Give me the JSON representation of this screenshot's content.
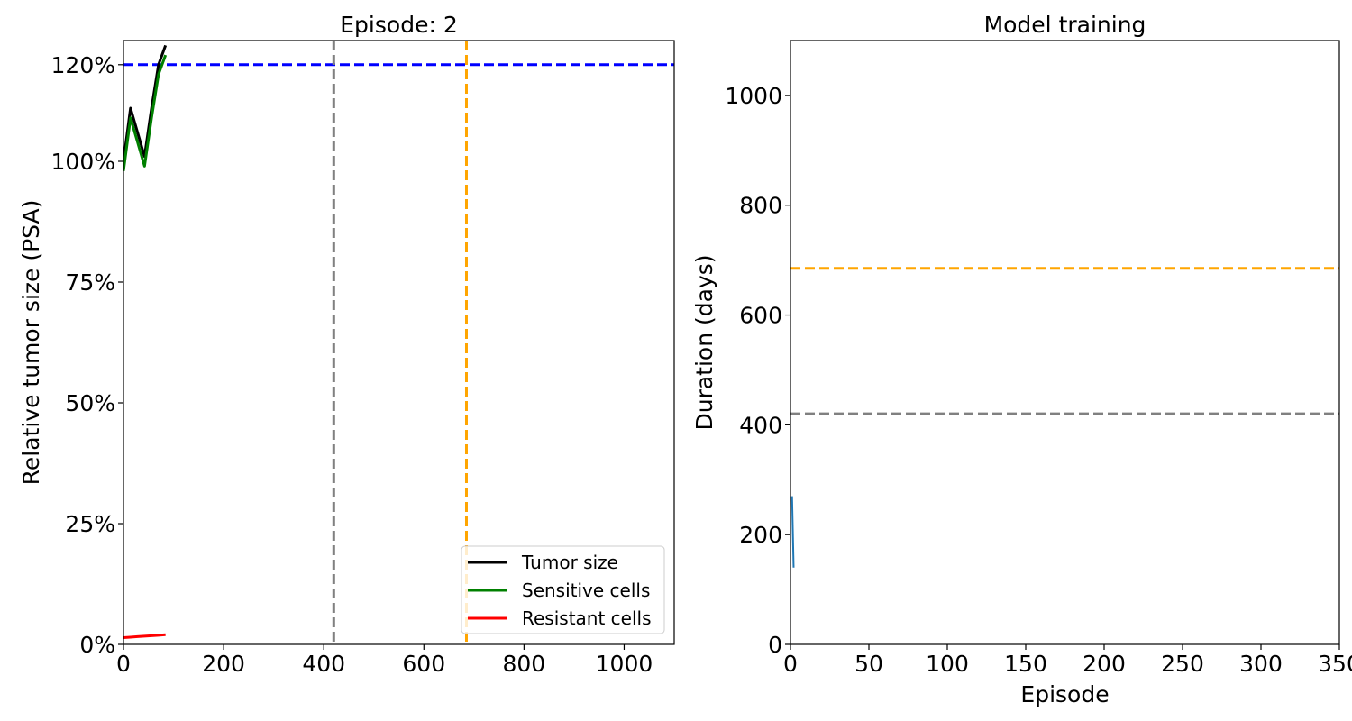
{
  "chart_data": [
    {
      "type": "line",
      "title": "Episode: 2",
      "xlabel": "",
      "ylabel": "Relative tumor size (PSA)",
      "xlim": [
        0,
        1100
      ],
      "ylim": [
        0,
        1.25
      ],
      "x_ticks": [
        0,
        200,
        400,
        600,
        800,
        1000
      ],
      "x_tick_labels": [
        "0",
        "200",
        "400",
        "600",
        "800",
        "1000"
      ],
      "y_ticks": [
        0,
        0.25,
        0.5,
        0.75,
        1.0,
        1.2
      ],
      "y_tick_labels": [
        "0%",
        "25%",
        "50%",
        "75%",
        "100%",
        "120%"
      ],
      "grid": false,
      "legend_position": "lower right",
      "series": [
        {
          "name": "Tumor size",
          "color": "#000000",
          "x": [
            0,
            14,
            42,
            56,
            70,
            84
          ],
          "y": [
            1.0,
            1.11,
            1.01,
            1.11,
            1.2,
            1.24
          ]
        },
        {
          "name": "Sensitive cells",
          "color": "#008000",
          "x": [
            0,
            14,
            42,
            56,
            70,
            84
          ],
          "y": [
            0.98,
            1.09,
            0.99,
            1.09,
            1.18,
            1.22
          ]
        },
        {
          "name": "Resistant cells",
          "color": "#ff0000",
          "x": [
            0,
            14,
            28,
            42,
            56,
            70,
            84
          ],
          "y": [
            0.014,
            0.015,
            0.016,
            0.017,
            0.018,
            0.019,
            0.02
          ]
        }
      ],
      "reference_lines": [
        {
          "orientation": "horizontal",
          "value": 1.2,
          "color": "#0000ff",
          "style": "dashed"
        },
        {
          "orientation": "vertical",
          "value": 420,
          "color": "#808080",
          "style": "dashed"
        },
        {
          "orientation": "vertical",
          "value": 685,
          "color": "#ffa500",
          "style": "dashed"
        }
      ]
    },
    {
      "type": "line",
      "title": "Model training",
      "xlabel": "Episode",
      "ylabel": "Duration (days)",
      "xlim": [
        0,
        350
      ],
      "ylim": [
        0,
        1100
      ],
      "x_ticks": [
        0,
        50,
        100,
        150,
        200,
        250,
        300,
        350
      ],
      "x_tick_labels": [
        "0",
        "50",
        "100",
        "150",
        "200",
        "250",
        "300",
        "350"
      ],
      "y_ticks": [
        0,
        200,
        400,
        600,
        800,
        1000
      ],
      "y_tick_labels": [
        "0",
        "200",
        "400",
        "600",
        "800",
        "1000"
      ],
      "grid": false,
      "series": [
        {
          "color": "#1f77b4",
          "x": [
            1,
            2
          ],
          "y": [
            270,
            140
          ]
        }
      ],
      "reference_lines": [
        {
          "orientation": "horizontal",
          "value": 685,
          "color": "#ffa500",
          "style": "dashed"
        },
        {
          "orientation": "horizontal",
          "value": 420,
          "color": "#808080",
          "style": "dashed"
        }
      ]
    }
  ]
}
